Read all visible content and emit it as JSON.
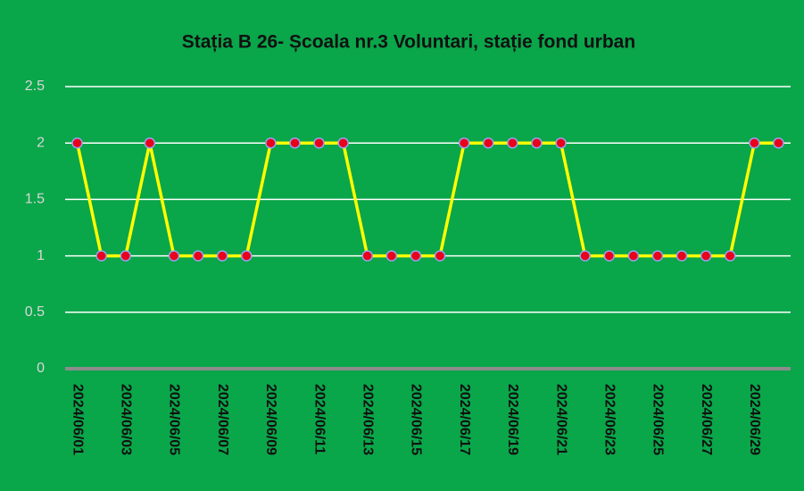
{
  "chart_data": {
    "type": "line",
    "title": "Stația B 26- Școala  nr.3 Voluntari, stație fond urban",
    "categories": [
      "2024/06/01",
      null,
      "2024/06/03",
      null,
      "2024/06/05",
      null,
      "2024/06/07",
      null,
      "2024/06/09",
      null,
      "2024/06/11",
      null,
      "2024/06/13",
      null,
      "2024/06/15",
      null,
      "2024/06/17",
      null,
      "2024/06/19",
      null,
      "2024/06/21",
      null,
      "2024/06/23",
      null,
      "2024/06/25",
      null,
      "2024/06/27",
      null,
      "2024/06/29",
      null
    ],
    "series": [
      {
        "color": "#ffff00",
        "marker_color": "#e8001c",
        "values": [
          2,
          1,
          1,
          2,
          1,
          1,
          1,
          1,
          2,
          2,
          2,
          2,
          1,
          1,
          1,
          1,
          2,
          2,
          2,
          2,
          2,
          1,
          1,
          1,
          1,
          1,
          1,
          1,
          2,
          2
        ]
      }
    ],
    "ylim": [
      0,
      2.5
    ],
    "yticks": [
      0,
      0.5,
      1,
      1.5,
      2,
      2.5
    ],
    "grid": true
  }
}
